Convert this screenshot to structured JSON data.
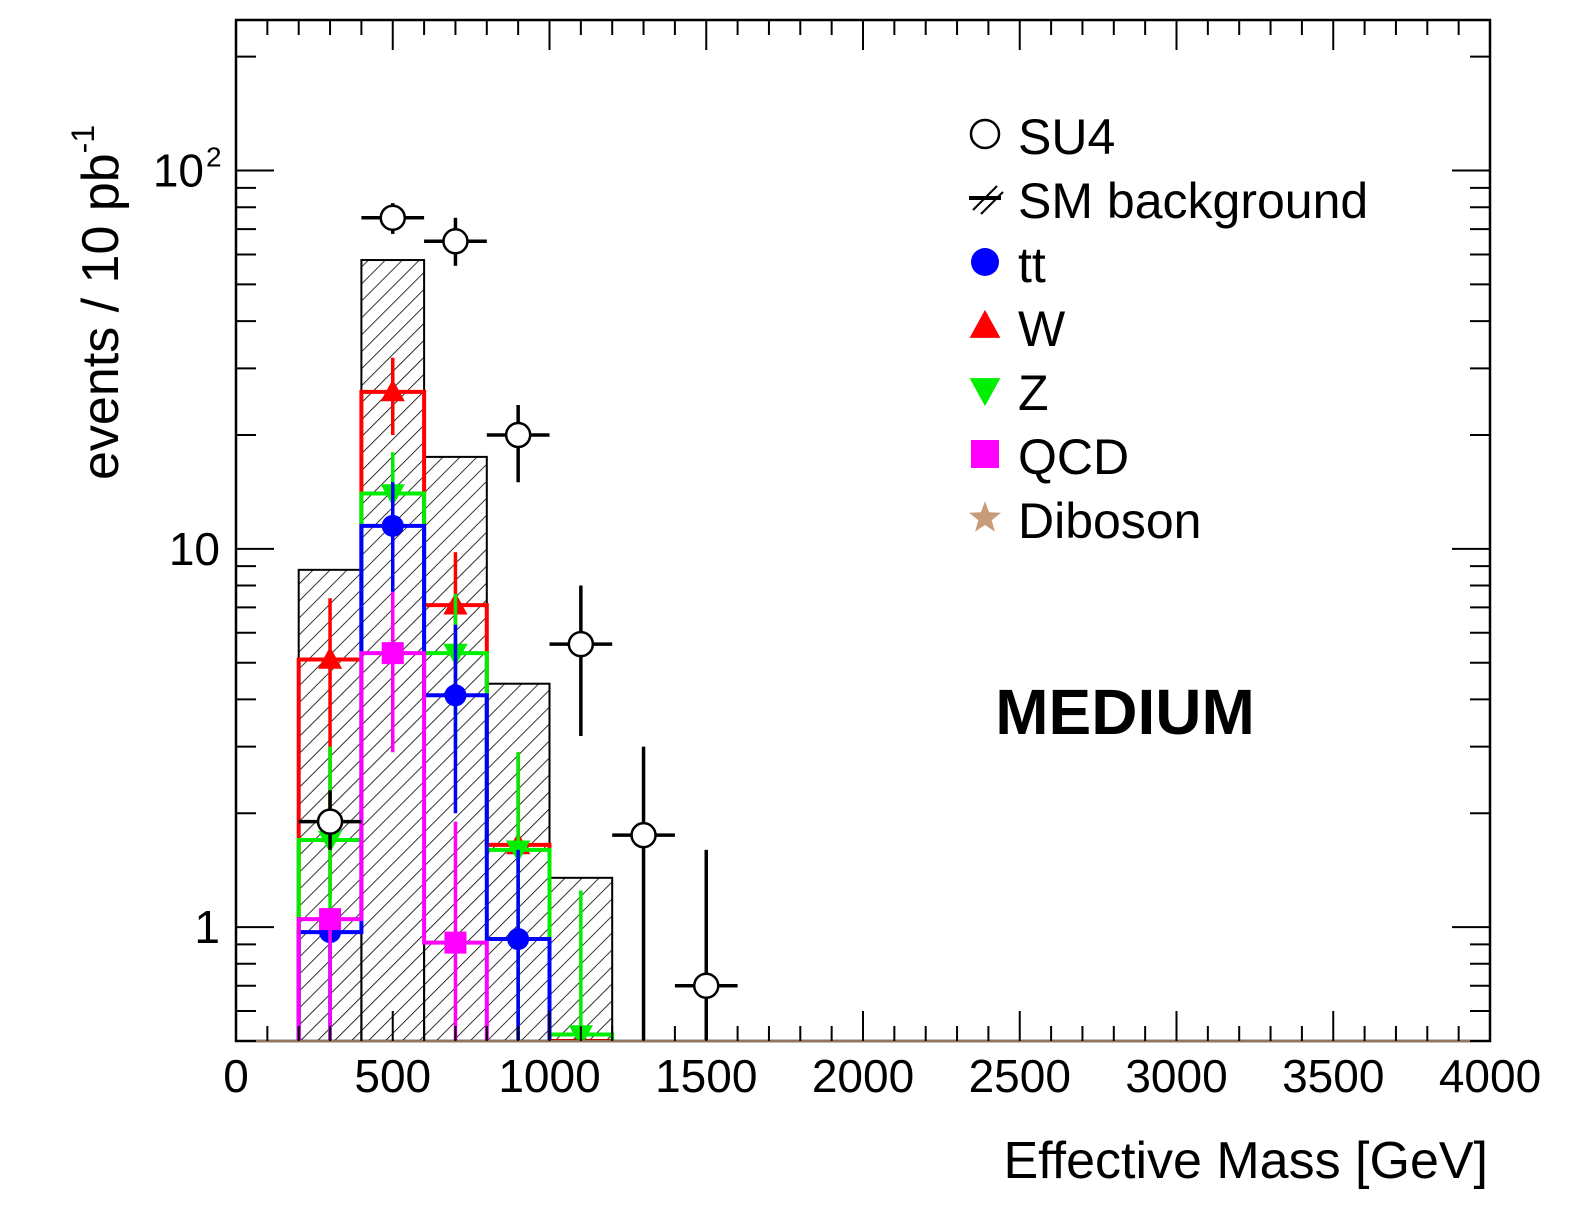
{
  "chart_data": {
    "type": "histogram",
    "xlabel": "Effective Mass [GeV]",
    "ylabel": "events / 10 pb",
    "ylabel_sup": "-1",
    "xlim": [
      0,
      4000
    ],
    "ylim": [
      0.5,
      250
    ],
    "log_y": true,
    "grid": false,
    "legend_position": "top-right",
    "x_ticks": [
      "0",
      "500",
      "1000",
      "1500",
      "2000",
      "2500",
      "3000",
      "3500",
      "4000"
    ],
    "y_ticks": [
      {
        "value": 1,
        "label": "1",
        "sup": ""
      },
      {
        "value": 10,
        "label": "10",
        "sup": ""
      },
      {
        "value": 100,
        "label": "10",
        "sup": "2"
      }
    ],
    "annotation": "MEDIUM",
    "bin_edges": [
      200,
      400,
      600,
      800,
      1000,
      1200
    ],
    "sm_background": {
      "label": "SM background",
      "style": "hatched",
      "values": [
        8.8,
        58,
        17.5,
        4.4,
        1.35
      ]
    },
    "series": [
      {
        "name": "W",
        "color": "#ff0000",
        "marker": "triangle-up",
        "values": [
          5.1,
          26,
          7.1,
          1.65,
          0.5
        ],
        "err_low": [
          1.2,
          20,
          4.6,
          0.5,
          0.5
        ],
        "err_high": [
          7.4,
          32,
          9.8,
          2.9,
          0.5
        ]
      },
      {
        "name": "Z",
        "color": "#00ee00",
        "marker": "triangle-down",
        "values": [
          1.7,
          14,
          5.3,
          1.6,
          0.52
        ],
        "err_low": [
          0.5,
          9.5,
          3.0,
          0.5,
          0.5
        ],
        "err_high": [
          3.0,
          18,
          7.6,
          2.9,
          1.25
        ]
      },
      {
        "name": "tt",
        "color": "#0000ff",
        "marker": "circle",
        "values": [
          0.97,
          11.5,
          4.1,
          0.93,
          null
        ],
        "err_low": [
          0.5,
          7.5,
          2.0,
          0.5,
          null
        ],
        "err_high": [
          0.97,
          15,
          6.3,
          1.6,
          null
        ]
      },
      {
        "name": "QCD",
        "color": "#ff00ff",
        "marker": "square",
        "values": [
          1.05,
          5.3,
          0.91,
          null,
          null
        ],
        "err_low": [
          0.5,
          2.9,
          0.5,
          null,
          null
        ],
        "err_high": [
          1.05,
          7.7,
          1.9,
          null,
          null
        ]
      },
      {
        "name": "Diboson",
        "color": "#c89b7b",
        "marker": "star",
        "values": [
          null,
          null,
          null,
          null,
          null
        ],
        "err_low": [
          null,
          null,
          null,
          null,
          null
        ],
        "err_high": [
          null,
          null,
          null,
          null,
          null
        ]
      }
    ],
    "su4": {
      "name": "SU4",
      "marker": "open-circle",
      "x": [
        300,
        500,
        700,
        900,
        1100,
        1300,
        1500
      ],
      "y": [
        1.9,
        75,
        65,
        20,
        5.6,
        1.75,
        0.7
      ],
      "y_low": [
        1.6,
        68,
        56,
        15,
        3.2,
        0.5,
        0.5
      ],
      "y_high": [
        2.3,
        82,
        75,
        24,
        8.0,
        3.0,
        1.6
      ]
    },
    "legend": [
      {
        "label": "SU4",
        "marker": "open-circle",
        "color": "#000000"
      },
      {
        "label": "SM background",
        "marker": "hatch",
        "color": "#000000"
      },
      {
        "label": "tt",
        "marker": "circle",
        "color": "#0000ff"
      },
      {
        "label": "W",
        "marker": "triangle-up",
        "color": "#ff0000"
      },
      {
        "label": "Z",
        "marker": "triangle-down",
        "color": "#00ee00"
      },
      {
        "label": "QCD",
        "marker": "square",
        "color": "#ff00ff"
      },
      {
        "label": "Diboson",
        "marker": "star",
        "color": "#c89b7b"
      }
    ]
  }
}
